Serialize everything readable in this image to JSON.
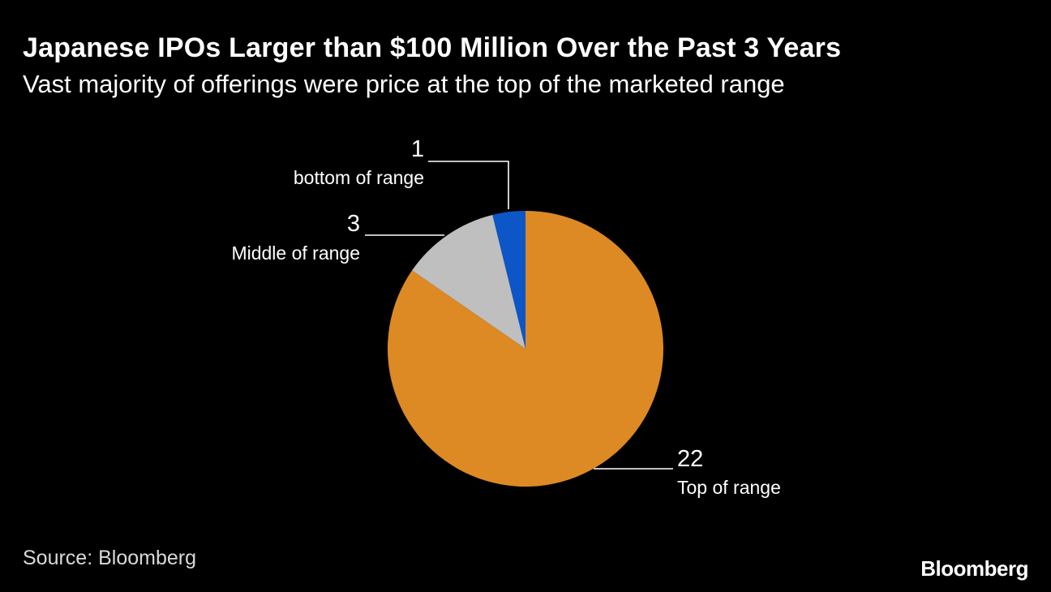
{
  "chart_data": {
    "type": "pie",
    "title": "Japanese IPOs Larger than $100 Million Over the Past 3 Years",
    "subtitle": "Vast majority of offerings were price at the top of the marketed range",
    "categories": [
      "Top of range",
      "Middle of range",
      "bottom of range"
    ],
    "values": [
      22,
      3,
      1
    ],
    "value_labels": [
      "22",
      "3",
      "1"
    ],
    "colors": [
      "#dd8a24",
      "#bfbfbf",
      "#0d56c8"
    ],
    "source": "Source: Bloomberg"
  },
  "branding": {
    "logo": "Bloomberg"
  }
}
